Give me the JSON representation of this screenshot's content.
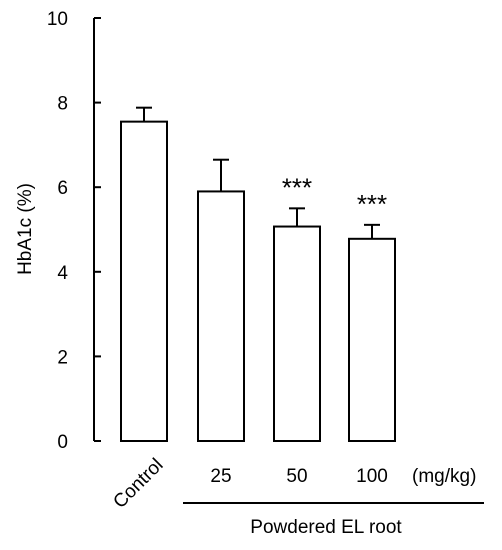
{
  "chart_data": {
    "type": "bar",
    "ylabel": "HbA1c (%)",
    "ylim": [
      0,
      10
    ],
    "yticks": [
      0,
      2,
      4,
      6,
      8,
      10
    ],
    "categories": [
      "Control",
      "25",
      "50",
      "100"
    ],
    "values": [
      7.55,
      5.9,
      5.07,
      4.78
    ],
    "errors": [
      0.33,
      0.75,
      0.43,
      0.33
    ],
    "significance": [
      "",
      "",
      "***",
      "***"
    ],
    "unit_label": "(mg/kg)",
    "group_label": "Powdered EL root",
    "bar_fill": "#ffffff",
    "bar_stroke": "#000000",
    "grid": false
  }
}
